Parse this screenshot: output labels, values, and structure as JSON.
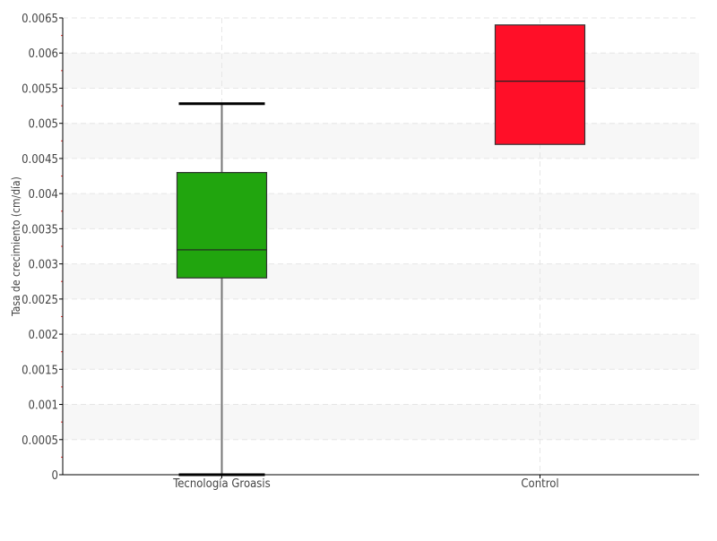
{
  "chart_data": {
    "type": "boxplot",
    "title": "",
    "xlabel": "",
    "ylabel": "Tasa de crecimiento (cm/día)",
    "ylim": [
      0,
      0.0065
    ],
    "yticks": [
      "0",
      "0.0005",
      "0.001",
      "0.0015",
      "0.002",
      "0.0025",
      "0.003",
      "0.0035",
      "0.004",
      "0.0045",
      "0.005",
      "0.0055",
      "0.006",
      "0.0065"
    ],
    "grid": true,
    "categories": [
      "Tecnología Groasis",
      "Control"
    ],
    "boxes": [
      {
        "category": "Tecnología Groasis",
        "min": 0,
        "q1": 0.0028,
        "median": 0.0032,
        "q3": 0.0043,
        "max": 0.00528,
        "color": "#21a50e"
      },
      {
        "category": "Control",
        "min": 0.0047,
        "q1": 0.0047,
        "median": 0.0056,
        "q3": 0.0064,
        "max": 0.0064,
        "color": "#ff0f28"
      }
    ]
  }
}
